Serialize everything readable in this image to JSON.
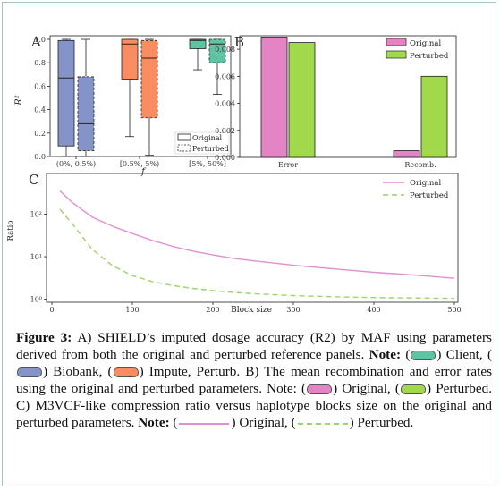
{
  "chart_data": [
    {
      "panel_label": "A",
      "type": "box",
      "xlabel": "f",
      "ylabel": "R²",
      "ylim": [
        0,
        1
      ],
      "yticks": [
        "0.0",
        "0.2",
        "0.4",
        "0.6",
        "0.8",
        "1.0"
      ],
      "categories": [
        "(0%, 0.5%)",
        "[0.5%, 5%)",
        "[5%, 50%]"
      ],
      "legend": [
        "Original",
        "Perturbed"
      ],
      "legend_position": "bottom-right",
      "boxes": [
        {
          "category": "(0%, 0.5%)",
          "variant": "Original",
          "color": "#8494c8",
          "whisker_low": 0.0,
          "q1": 0.09,
          "median": 0.67,
          "q3": 0.99,
          "whisker_high": 1.0
        },
        {
          "category": "(0%, 0.5%)",
          "variant": "Perturbed",
          "color": "#8494c8",
          "whisker_low": 0.0,
          "q1": 0.05,
          "median": 0.28,
          "q3": 0.68,
          "whisker_high": 1.0
        },
        {
          "category": "[0.5%, 5%)",
          "variant": "Original",
          "color": "#fa8c62",
          "whisker_low": 0.17,
          "q1": 0.66,
          "median": 0.96,
          "q3": 1.0,
          "whisker_high": 1.0
        },
        {
          "category": "[0.5%, 5%)",
          "variant": "Perturbed",
          "color": "#fa8c62",
          "whisker_low": 0.01,
          "q1": 0.33,
          "median": 0.84,
          "q3": 0.99,
          "whisker_high": 1.0
        },
        {
          "category": "[5%, 50%]",
          "variant": "Original",
          "color": "#5fc3a3",
          "whisker_low": 0.74,
          "q1": 0.92,
          "median": 0.99,
          "q3": 1.0,
          "whisker_high": 1.0
        },
        {
          "category": "[5%, 50%]",
          "variant": "Perturbed",
          "color": "#5fc3a3",
          "whisker_low": 0.53,
          "q1": 0.8,
          "median": 0.96,
          "q3": 1.0,
          "whisker_high": 1.0
        }
      ]
    },
    {
      "panel_label": "B",
      "type": "bar",
      "categories": [
        "Error",
        "Recomb."
      ],
      "ylim": [
        0,
        0.009
      ],
      "yticks": [
        "0.000",
        "0.002",
        "0.004",
        "0.006",
        "0.008"
      ],
      "legend_position": "top-right",
      "series": [
        {
          "name": "Original",
          "color": "#e385c5",
          "values": [
            0.0089,
            0.0005
          ]
        },
        {
          "name": "Perturbed",
          "color": "#a2d94b",
          "values": [
            0.0085,
            0.006
          ]
        }
      ]
    },
    {
      "panel_label": "C",
      "type": "line",
      "xlabel": "Block size",
      "ylabel": "Ratio",
      "yscale": "log",
      "xticks": [
        "0",
        "100",
        "200",
        "300",
        "400",
        "500"
      ],
      "yticks": [
        "10⁰",
        "10¹",
        "10²"
      ],
      "legend_position": "top-right",
      "x": [
        10,
        25,
        50,
        75,
        100,
        125,
        150,
        175,
        200,
        225,
        250,
        275,
        300,
        325,
        350,
        375,
        400,
        425,
        450,
        475,
        500
      ],
      "series": [
        {
          "name": "Original",
          "color": "#e08fcf",
          "style": "solid",
          "values": [
            350,
            190,
            85,
            52,
            35,
            24,
            17.5,
            13.5,
            11,
            9.2,
            8,
            7.1,
            6.3,
            5.7,
            5.2,
            4.7,
            4.3,
            4.0,
            3.7,
            3.4,
            3.1
          ]
        },
        {
          "name": "Perturbed",
          "color": "#9bd46a",
          "style": "dashed",
          "values": [
            130,
            60,
            15,
            6.2,
            3.6,
            2.6,
            2.1,
            1.8,
            1.6,
            1.45,
            1.35,
            1.28,
            1.22,
            1.18,
            1.15,
            1.12,
            1.1,
            1.08,
            1.07,
            1.06,
            1.05
          ]
        }
      ]
    }
  ],
  "caption": {
    "figure_label": "Figure 3:",
    "part_a": "A) SHIELD’s imputed dosage accuracy (R2) by MAF using parameters derived from both the original and perturbed reference panels.",
    "note1_label": "Note:",
    "note1_items": [
      {
        "color": "#5fc3a3",
        "text": "Client,"
      },
      {
        "color": "#8494c8",
        "text": "Biobank,"
      },
      {
        "color": "#fa8c62",
        "text": "Impute, Perturb."
      }
    ],
    "part_b": "B) The mean recombination and error rates using the original and perturbed parameters. Note:",
    "note2_items": [
      {
        "color": "#e385c5",
        "text": "Original,"
      },
      {
        "color": "#a2d94b",
        "text": "Perturbed."
      }
    ],
    "part_c": "C) M3VCF-like compression ratio versus haplotype blocks size on the original and perturbed parameters.",
    "note3_label": "Note:",
    "note3_items": [
      {
        "kind": "line",
        "color": "#e08fcf",
        "text": "Original,"
      },
      {
        "kind": "dashed",
        "color": "#9bd46a",
        "text": "Perturbed."
      }
    ]
  }
}
